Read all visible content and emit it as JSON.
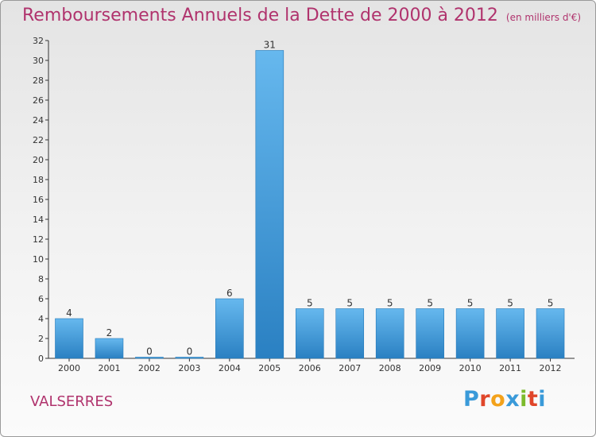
{
  "header": {
    "title": "Remboursements Annuels de la Dette de 2000 à 2012",
    "unit": "(en milliers d'€)"
  },
  "commune": "VALSERRES",
  "logo": {
    "letters": [
      "P",
      "r",
      "o",
      "x",
      "i",
      "t",
      "i"
    ],
    "colors": [
      "#3a9ad9",
      "#e0462a",
      "#f3a21b",
      "#3a9ad9",
      "#7dbb2d",
      "#e0462a",
      "#3a9ad9"
    ]
  },
  "colors": {
    "bar_light": "#62b4ec",
    "bar_dark": "#2a82c4",
    "title": "#b0336d"
  },
  "chart_data": {
    "type": "bar",
    "title": "Remboursements Annuels de la Dette de 2000 à 2012",
    "categories": [
      "2000",
      "2001",
      "2002",
      "2003",
      "2004",
      "2005",
      "2006",
      "2007",
      "2008",
      "2009",
      "2010",
      "2011",
      "2012"
    ],
    "values": [
      4,
      2,
      0,
      0,
      6,
      31,
      5,
      5,
      5,
      5,
      5,
      5,
      5
    ],
    "ylim": [
      0,
      32
    ],
    "yticks": [
      0,
      2,
      4,
      6,
      8,
      10,
      12,
      14,
      16,
      18,
      20,
      22,
      24,
      26,
      28,
      30,
      32
    ],
    "grid": false,
    "data_labels": true
  }
}
